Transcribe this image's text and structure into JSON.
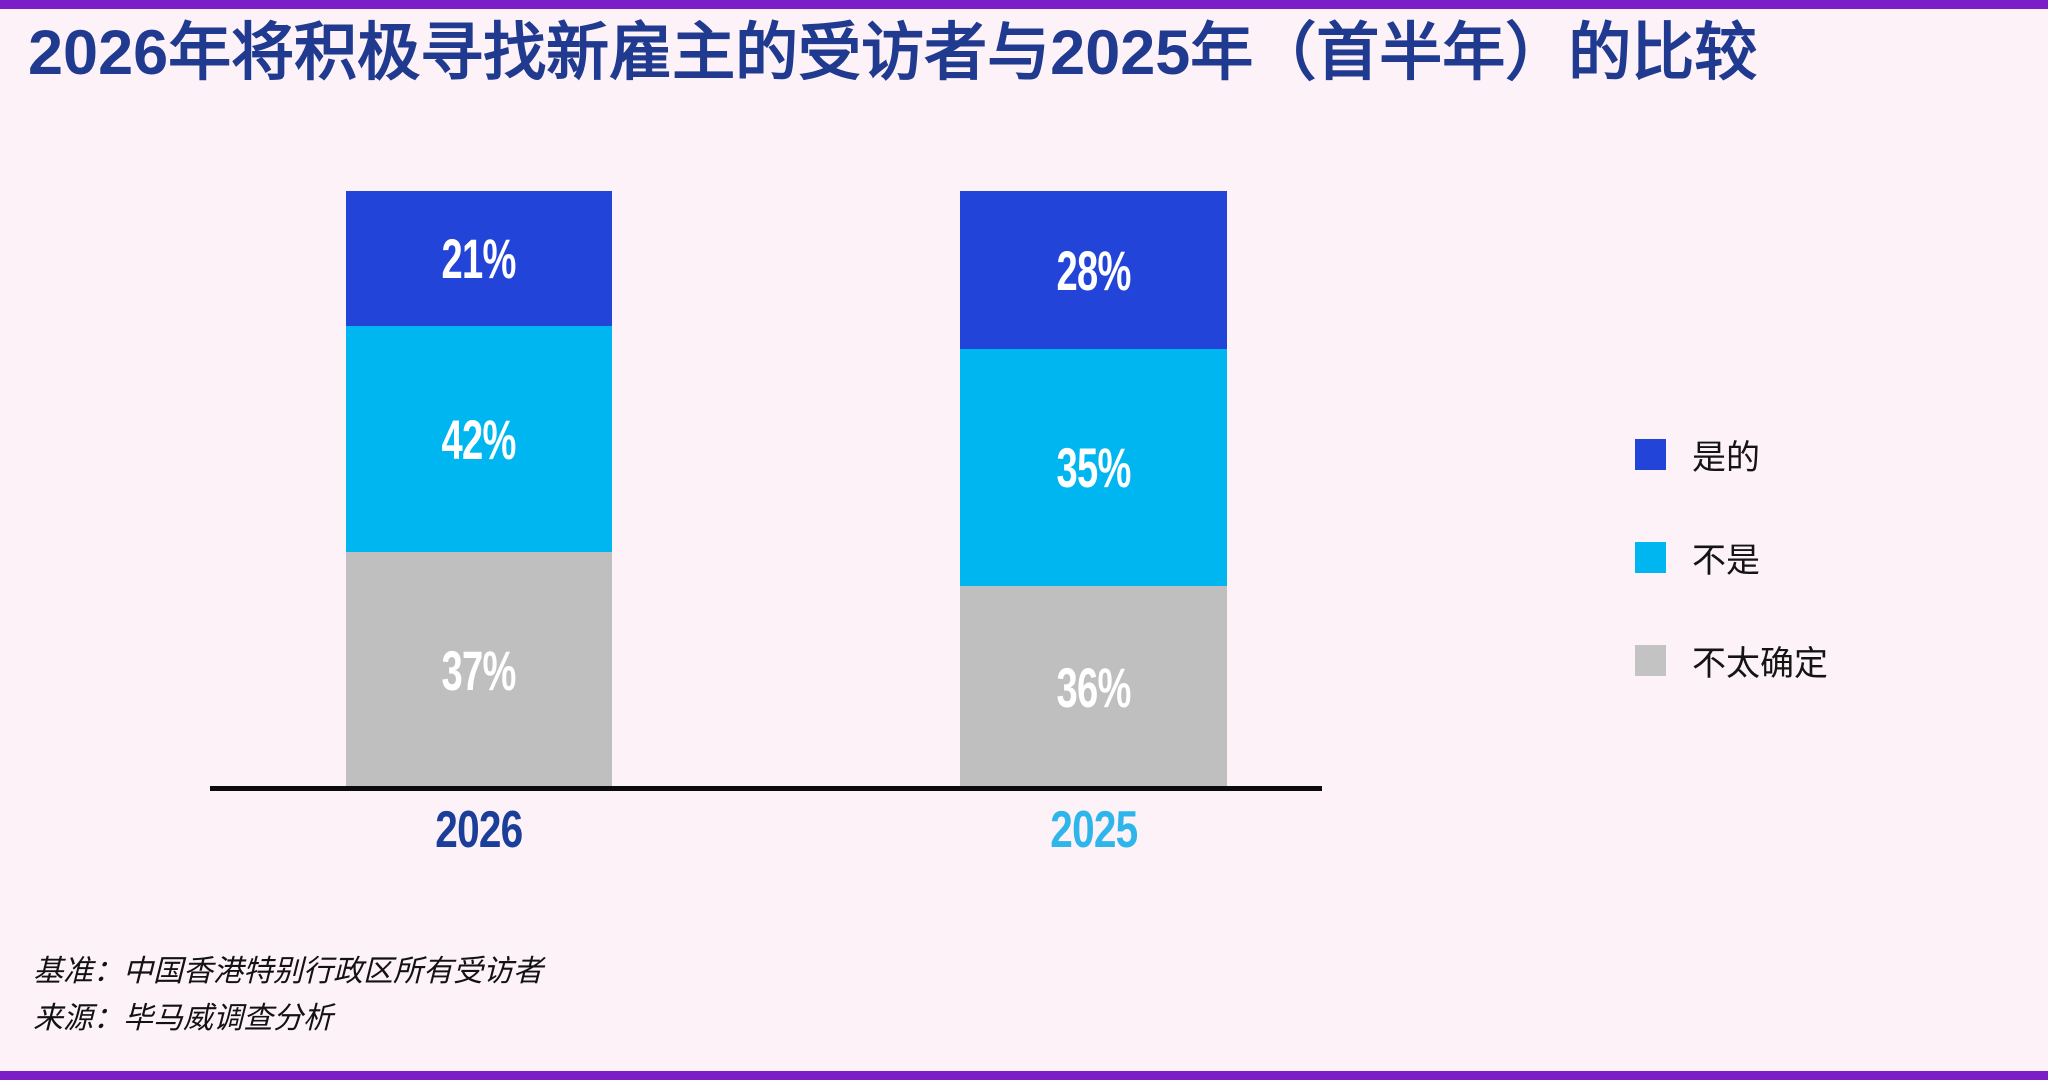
{
  "meta": {
    "background_color": "#fdf2f8",
    "accent_border_color": "#7b1ec8",
    "title_color": "#203a90",
    "axis_line_color": "#0b0b0b"
  },
  "title": "2026年将积极寻找新雇主的受访者与2025年（首半年）的比较",
  "chart_data": {
    "type": "bar",
    "stacked": true,
    "orientation": "vertical",
    "categories": [
      "2026",
      "2025"
    ],
    "category_label_colors": [
      "#1b3e9b",
      "#2eb6ea"
    ],
    "series": [
      {
        "name": "是的",
        "color": "#2244d8",
        "values": [
          21,
          28
        ],
        "labels": [
          "21%",
          "28%"
        ]
      },
      {
        "name": "不是",
        "color": "#00b6f0",
        "values": [
          42,
          35
        ],
        "labels": [
          "42%",
          "35%"
        ]
      },
      {
        "name": "不太确定",
        "color": "#bfbfbf",
        "values": [
          37,
          36
        ],
        "labels": [
          "37%",
          "36%"
        ]
      }
    ],
    "value_unit": "%",
    "value_label_color": "#ffffff",
    "legend_position": "right",
    "grid": false,
    "y_axis_visible": false,
    "baseline_only": true
  },
  "footer": {
    "base": "基准：中国香港特别行政区所有受访者",
    "source": "来源：毕马威调查分析"
  }
}
